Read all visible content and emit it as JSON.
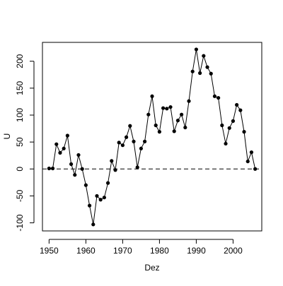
{
  "chart_data": {
    "type": "line",
    "title": "",
    "xlabel": "Dez",
    "ylabel": "U",
    "xlim": [
      1948.2,
      2007.8
    ],
    "ylim": [
      -115,
      235
    ],
    "xticks": [
      1950,
      1960,
      1970,
      1980,
      1990,
      2000
    ],
    "xtick_labels": [
      "1950",
      "1960",
      "1970",
      "1980",
      "1990",
      "2000"
    ],
    "yticks": [
      -100,
      -50,
      0,
      50,
      100,
      150,
      200
    ],
    "ytick_labels": [
      "-100",
      "-50",
      "0",
      "50",
      "100",
      "150",
      "200"
    ],
    "grid": false,
    "legend": "none",
    "reference_line": {
      "y": 0,
      "style": "dashed"
    },
    "series": [
      {
        "marker": "filled-circle",
        "color": "#000000",
        "x": [
          1950,
          1951,
          1952,
          1953,
          1954,
          1955,
          1956,
          1957,
          1958,
          1959,
          1960,
          1961,
          1962,
          1963,
          1964,
          1965,
          1966,
          1967,
          1968,
          1969,
          1970,
          1971,
          1972,
          1973,
          1974,
          1975,
          1976,
          1977,
          1978,
          1979,
          1980,
          1981,
          1982,
          1983,
          1984,
          1985,
          1986,
          1987,
          1988,
          1989,
          1990,
          1991,
          1992,
          1993,
          1994,
          1995,
          1996,
          1997,
          1998,
          1999,
          2000,
          2001,
          2002,
          2003,
          2004,
          2005,
          2006
        ],
        "y": [
          1,
          1,
          46,
          30,
          38,
          62,
          9,
          -11,
          26,
          0,
          -30,
          -68,
          -103,
          -50,
          -57,
          -53,
          -26,
          15,
          -2,
          49,
          44,
          59,
          80,
          51,
          3,
          38,
          51,
          101,
          135,
          81,
          69,
          113,
          112,
          115,
          70,
          90,
          101,
          77,
          126,
          181,
          222,
          178,
          210,
          189,
          177,
          135,
          132,
          81,
          47,
          76,
          89,
          119,
          109,
          69,
          14,
          31,
          0
        ]
      }
    ]
  }
}
